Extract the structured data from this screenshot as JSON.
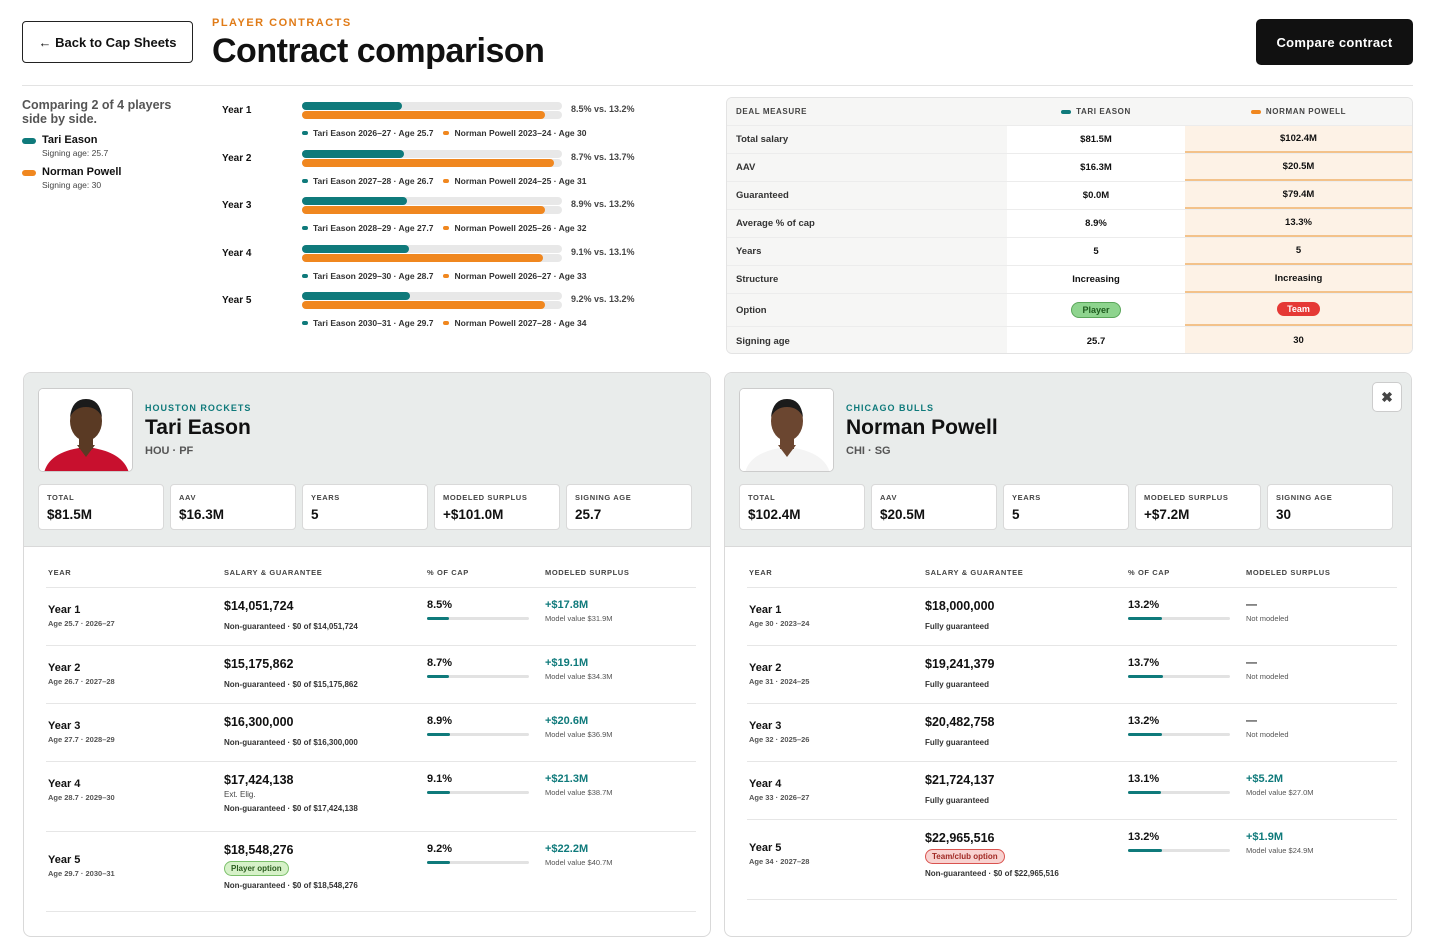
{
  "header": {
    "back_label": "← Back to Cap Sheets",
    "eyebrow": "PLAYER CONTRACTS",
    "title": "Contract comparison",
    "compare_label": "Compare contract"
  },
  "colors": {
    "player_a": "#0f7a7b",
    "player_b": "#f0871f",
    "accent": "#e07b17"
  },
  "legend": {
    "comparing": "Comparing 2 of 4 players side by side.",
    "players": [
      {
        "name": "Tari Eason",
        "age": "Signing age: 25.7"
      },
      {
        "name": "Norman Powell",
        "age": "Signing age: 30"
      }
    ]
  },
  "year_bars": [
    {
      "label": "Year 1",
      "a_pct": 8.5,
      "b_pct": 13.2,
      "text": "8.5% vs. 13.2%",
      "a_sub": "Tari Eason 2026–27 · Age 25.7",
      "b_sub": "Norman Powell 2023–24 · Age 30"
    },
    {
      "label": "Year 2",
      "a_pct": 8.7,
      "b_pct": 13.7,
      "text": "8.7% vs. 13.7%",
      "a_sub": "Tari Eason 2027–28 · Age 26.7",
      "b_sub": "Norman Powell 2024–25 · Age 31"
    },
    {
      "label": "Year 3",
      "a_pct": 8.9,
      "b_pct": 13.2,
      "text": "8.9% vs. 13.2%",
      "a_sub": "Tari Eason 2028–29 · Age 27.7",
      "b_sub": "Norman Powell 2025–26 · Age 32"
    },
    {
      "label": "Year 4",
      "a_pct": 9.1,
      "b_pct": 13.1,
      "text": "9.1% vs. 13.1%",
      "a_sub": "Tari Eason 2029–30 · Age 28.7",
      "b_sub": "Norman Powell 2026–27 · Age 33"
    },
    {
      "label": "Year 5",
      "a_pct": 9.2,
      "b_pct": 13.2,
      "text": "9.2% vs. 13.2%",
      "a_sub": "Tari Eason 2030–31 · Age 29.7",
      "b_sub": "Norman Powell 2027–28 · Age 34"
    }
  ],
  "deal": {
    "headers": [
      "DEAL MEASURE",
      "TARI EASON",
      "NORMAN POWELL"
    ],
    "rows": [
      {
        "measure": "Total salary",
        "a": "$81.5M",
        "b": "$102.4M"
      },
      {
        "measure": "AAV",
        "a": "$16.3M",
        "b": "$20.5M"
      },
      {
        "measure": "Guaranteed",
        "a": "$0.0M",
        "b": "$79.4M"
      },
      {
        "measure": "Average % of cap",
        "a": "8.9%",
        "b": "13.3%"
      },
      {
        "measure": "Years",
        "a": "5",
        "b": "5"
      },
      {
        "measure": "Structure",
        "a": "Increasing",
        "b": "Increasing"
      },
      {
        "measure": "Option",
        "a": "Player",
        "b": "Team"
      },
      {
        "measure": "Signing age",
        "a": "25.7",
        "b": "30"
      }
    ]
  },
  "cards": [
    {
      "team": "HOUSTON ROCKETS",
      "name": "Tari Eason",
      "pos": "HOU · PF",
      "stats": [
        {
          "k": "TOTAL",
          "v": "$81.5M"
        },
        {
          "k": "AAV",
          "v": "$16.3M"
        },
        {
          "k": "YEARS",
          "v": "5"
        },
        {
          "k": "MODELED SURPLUS",
          "v": "+$101.0M"
        },
        {
          "k": "SIGNING AGE",
          "v": "25.7"
        }
      ],
      "cols": [
        "YEAR",
        "SALARY & GUARANTEE",
        "% OF CAP",
        "MODELED SURPLUS"
      ],
      "rows": [
        {
          "year": "Year 1",
          "sub": "Age 25.7 · 2026–27",
          "salary": "$14,051,724",
          "extra": "",
          "opt": "",
          "guar": "Non-guaranteed · $0 of $14,051,724",
          "pct": "8.5%",
          "pv": 8.5,
          "sur": "+$17.8M",
          "mv": "Model value $31.9M"
        },
        {
          "year": "Year 2",
          "sub": "Age 26.7 · 2027–28",
          "salary": "$15,175,862",
          "extra": "",
          "opt": "",
          "guar": "Non-guaranteed · $0 of $15,175,862",
          "pct": "8.7%",
          "pv": 8.7,
          "sur": "+$19.1M",
          "mv": "Model value $34.3M"
        },
        {
          "year": "Year 3",
          "sub": "Age 27.7 · 2028–29",
          "salary": "$16,300,000",
          "extra": "",
          "opt": "",
          "guar": "Non-guaranteed · $0 of $16,300,000",
          "pct": "8.9%",
          "pv": 8.9,
          "sur": "+$20.6M",
          "mv": "Model value $36.9M"
        },
        {
          "year": "Year 4",
          "sub": "Age 28.7 · 2029–30",
          "salary": "$17,424,138",
          "extra": "Ext. Elig.",
          "opt": "",
          "guar": "Non-guaranteed · $0 of $17,424,138",
          "pct": "9.1%",
          "pv": 9.1,
          "sur": "+$21.3M",
          "mv": "Model value $38.7M"
        },
        {
          "year": "Year 5",
          "sub": "Age 29.7 · 2030–31",
          "salary": "$18,548,276",
          "extra": "",
          "opt": "Player option",
          "guar": "Non-guaranteed · $0 of $18,548,276",
          "pct": "9.2%",
          "pv": 9.2,
          "sur": "+$22.2M",
          "mv": "Model value $40.7M"
        }
      ]
    },
    {
      "team": "CHICAGO BULLS",
      "name": "Norman Powell",
      "pos": "CHI · SG",
      "stats": [
        {
          "k": "TOTAL",
          "v": "$102.4M"
        },
        {
          "k": "AAV",
          "v": "$20.5M"
        },
        {
          "k": "YEARS",
          "v": "5"
        },
        {
          "k": "MODELED SURPLUS",
          "v": "+$7.2M"
        },
        {
          "k": "SIGNING AGE",
          "v": "30"
        }
      ],
      "cols": [
        "YEAR",
        "SALARY & GUARANTEE",
        "% OF CAP",
        "MODELED SURPLUS"
      ],
      "rows": [
        {
          "year": "Year 1",
          "sub": "Age 30 · 2023–24",
          "salary": "$18,000,000",
          "extra": "",
          "opt": "",
          "guar": "Fully guaranteed",
          "pct": "13.2%",
          "pv": 13.2,
          "sur": "—",
          "mv": "Not modeled"
        },
        {
          "year": "Year 2",
          "sub": "Age 31 · 2024–25",
          "salary": "$19,241,379",
          "extra": "",
          "opt": "",
          "guar": "Fully guaranteed",
          "pct": "13.7%",
          "pv": 13.7,
          "sur": "—",
          "mv": "Not modeled"
        },
        {
          "year": "Year 3",
          "sub": "Age 32 · 2025–26",
          "salary": "$20,482,758",
          "extra": "",
          "opt": "",
          "guar": "Fully guaranteed",
          "pct": "13.2%",
          "pv": 13.2,
          "sur": "—",
          "mv": "Not modeled"
        },
        {
          "year": "Year 4",
          "sub": "Age 33 · 2026–27",
          "salary": "$21,724,137",
          "extra": "",
          "opt": "",
          "guar": "Fully guaranteed",
          "pct": "13.1%",
          "pv": 13.1,
          "sur": "+$5.2M",
          "mv": "Model value $27.0M"
        },
        {
          "year": "Year 5",
          "sub": "Age 34 · 2027–28",
          "salary": "$22,965,516",
          "extra": "",
          "opt": "Team/club option",
          "guar": "Non-guaranteed · $0 of $22,965,516",
          "pct": "13.2%",
          "pv": 13.2,
          "sur": "+$1.9M",
          "mv": "Model value $24.9M"
        }
      ]
    }
  ],
  "close_icon": "close-icon"
}
